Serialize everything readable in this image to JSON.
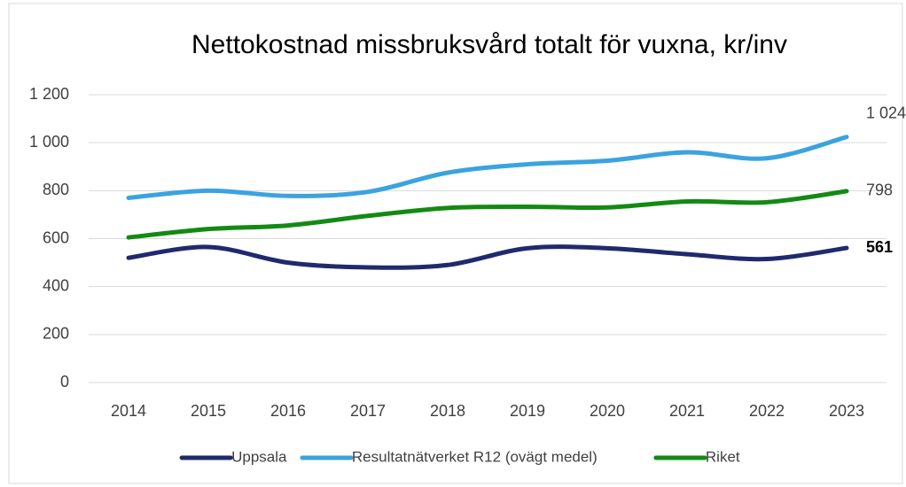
{
  "chart_data": {
    "type": "line",
    "title": "Nettokostnad missbruksvård totalt för vuxna, kr/inv",
    "categories": [
      "2014",
      "2015",
      "2016",
      "2017",
      "2018",
      "2019",
      "2020",
      "2021",
      "2022",
      "2023"
    ],
    "series": [
      {
        "name": "Uppsala",
        "color": "#1f2a6e",
        "values": [
          520,
          565,
          500,
          480,
          490,
          560,
          560,
          535,
          515,
          561
        ],
        "value_labels": [
          null,
          null,
          null,
          null,
          null,
          null,
          null,
          null,
          null,
          "561"
        ]
      },
      {
        "name": "Resultatnätverket R12 (ovägt medel)",
        "color": "#3aa3e0",
        "values": [
          770,
          800,
          778,
          795,
          875,
          910,
          925,
          960,
          935,
          1024
        ],
        "value_labels": [
          null,
          null,
          null,
          null,
          null,
          null,
          null,
          null,
          null,
          "1 024"
        ]
      },
      {
        "name": "Riket",
        "color": "#138a13",
        "values": [
          605,
          640,
          655,
          695,
          728,
          733,
          730,
          755,
          752,
          798
        ],
        "value_labels": [
          null,
          null,
          null,
          null,
          null,
          null,
          null,
          null,
          null,
          "798"
        ]
      }
    ],
    "ylim": [
      0,
      1200
    ],
    "yticks": [
      0,
      200,
      400,
      600,
      800,
      {
        "value": 1000,
        "label": "1 000"
      },
      {
        "value": 1200,
        "label": "1 200"
      }
    ],
    "grid": true,
    "legend": "bottom"
  }
}
